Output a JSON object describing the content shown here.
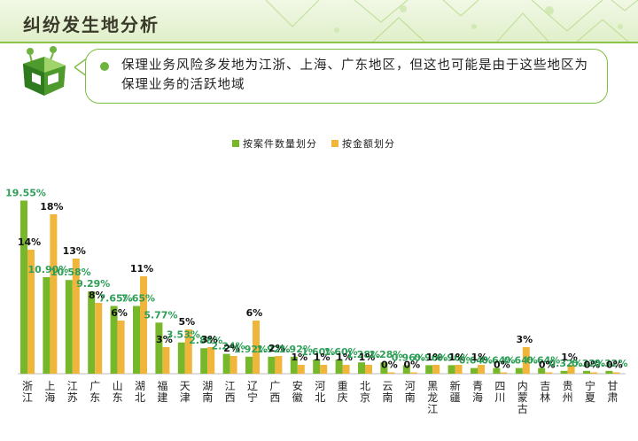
{
  "header": {
    "title": "纠纷发生地分析"
  },
  "callout": {
    "text": "保理业务风险多发地为江浙、上海、广东地区，但这也可能是由于这些地区为保理业务的活跃地域"
  },
  "colors": {
    "series_count": "#76b82a",
    "series_amount": "#f0b63c",
    "label_green": "#2e9e58",
    "header_line": "#8cc34b"
  },
  "chart_data": {
    "type": "bar",
    "categories": [
      "浙江",
      "上海",
      "江苏",
      "广东",
      "山东",
      "湖北",
      "福建",
      "天津",
      "湖南",
      "江西",
      "辽宁",
      "广西",
      "安徽",
      "河北",
      "重庆",
      "北京",
      "云南",
      "河南",
      "黑龙江",
      "新疆",
      "青海",
      "四川",
      "内蒙古",
      "吉林",
      "贵州",
      "宁夏",
      "甘肃"
    ],
    "series": [
      {
        "name": "按案件数量划分",
        "values": [
          19.55,
          10.9,
          10.58,
          9.29,
          7.65,
          7.65,
          5.77,
          3.53,
          2.88,
          2.24,
          1.92,
          1.92,
          1.92,
          1.6,
          1.6,
          1.28,
          1.28,
          0.96,
          0.96,
          0.96,
          0.64,
          0.64,
          0.64,
          0.64,
          0.32,
          0.32,
          0.32
        ],
        "labels": [
          "19.55%",
          "10.90%",
          "10.58%",
          "9.29%",
          "7.65%",
          "7.65%",
          "5.77%",
          "3.53%",
          "2.88%",
          "2.24%",
          "1.92%",
          "1.92%",
          "1.92%",
          "1.60%",
          "1.60%",
          "1.28%",
          "1.28%",
          "0.96%",
          "0.96%",
          "0.96%",
          "0.64%",
          "0.64%",
          "0.64%",
          "0.64%",
          "0.32%",
          "0.32%",
          "0.32%"
        ]
      },
      {
        "name": "按金额划分",
        "values": [
          14,
          18,
          13,
          8,
          6,
          11,
          3,
          5,
          3,
          2,
          6,
          2,
          1,
          1,
          1,
          1,
          0,
          0,
          1,
          1,
          1,
          0,
          3,
          0,
          1,
          0,
          0
        ],
        "labels": [
          "14%",
          "18%",
          "13%",
          "8%",
          "6%",
          "11%",
          "3%",
          "5%",
          "3%",
          "2%",
          "6%",
          "2%",
          "1%",
          "1%",
          "1%",
          "1%",
          "0%",
          "0%",
          "1%",
          "1%",
          "1%",
          "0%",
          "3%",
          "0%",
          "1%",
          "0%",
          "0%"
        ]
      }
    ],
    "ylim": [
      0,
      20
    ],
    "grid": false,
    "legend": "top-center"
  }
}
